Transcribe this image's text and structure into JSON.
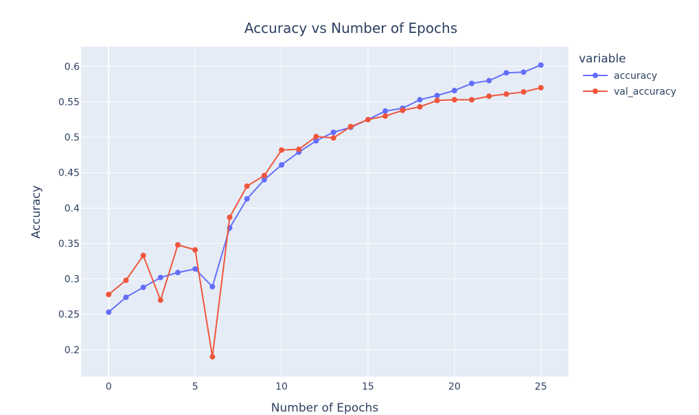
{
  "chart_data": {
    "type": "line",
    "title": "Accuracy vs Number of Epochs",
    "xlabel": "Number of Epochs",
    "ylabel": "Accuracy",
    "xlim": [
      -1.6,
      26.6
    ],
    "ylim": [
      0.162,
      0.628
    ],
    "xticks": [
      0,
      5,
      10,
      15,
      20,
      25
    ],
    "xtick_labels": [
      "0",
      "5",
      "10",
      "15",
      "20",
      "25"
    ],
    "yticks": [
      0.2,
      0.25,
      0.3,
      0.35,
      0.4,
      0.45,
      0.5,
      0.55,
      0.6
    ],
    "ytick_labels": [
      "0.2",
      "0.25",
      "0.3",
      "0.35",
      "0.4",
      "0.45",
      "0.5",
      "0.55",
      "0.6"
    ],
    "grid": true,
    "legend": {
      "title": "variable",
      "placement": "right"
    },
    "x": [
      0,
      1,
      2,
      3,
      4,
      5,
      6,
      7,
      8,
      9,
      10,
      11,
      12,
      13,
      14,
      15,
      16,
      17,
      18,
      19,
      20,
      21,
      22,
      23,
      24,
      25
    ],
    "series": [
      {
        "name": "accuracy",
        "color": "#636efa",
        "values": [
          0.253,
          0.274,
          0.288,
          0.302,
          0.309,
          0.314,
          0.289,
          0.372,
          0.413,
          0.44,
          0.461,
          0.479,
          0.495,
          0.507,
          0.514,
          0.525,
          0.537,
          0.541,
          0.553,
          0.559,
          0.566,
          0.576,
          0.58,
          0.591,
          0.592,
          0.602
        ]
      },
      {
        "name": "val_accuracy",
        "color": "#ef553b",
        "values": [
          0.278,
          0.298,
          0.333,
          0.27,
          0.348,
          0.341,
          0.19,
          0.387,
          0.431,
          0.446,
          0.482,
          0.483,
          0.501,
          0.499,
          0.515,
          0.525,
          0.53,
          0.538,
          0.543,
          0.552,
          0.553,
          0.553,
          0.558,
          0.561,
          0.564,
          0.57
        ]
      }
    ]
  }
}
